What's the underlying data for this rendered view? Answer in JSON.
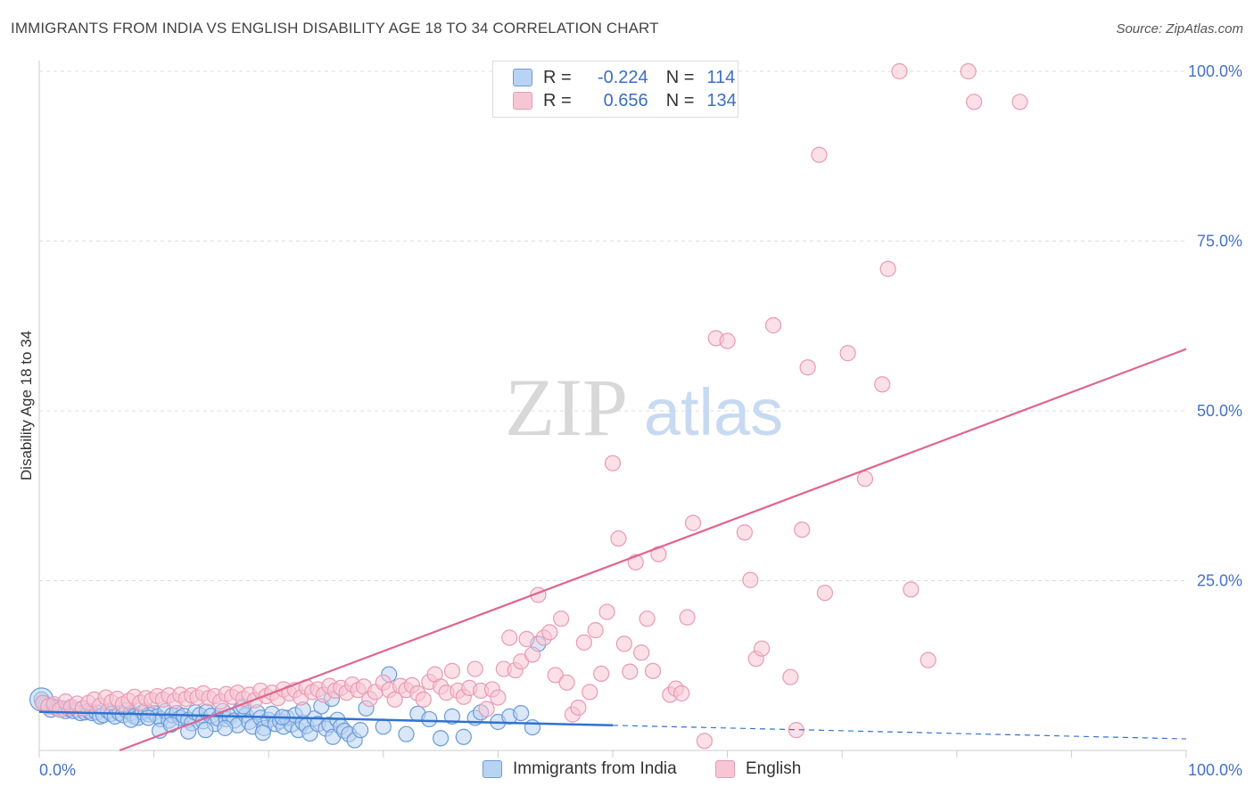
{
  "title": "IMMIGRANTS FROM INDIA VS ENGLISH DISABILITY AGE 18 TO 34 CORRELATION CHART",
  "source": "Source: ZipAtlas.com",
  "watermark": {
    "zip": "ZIP",
    "atlas": "atlas"
  },
  "legend": {
    "r_label": "R =",
    "n_label": "N =",
    "rows": [
      {
        "r": "-0.224",
        "n": "114",
        "color": "#6b9bd8",
        "fill": "#b9d3f3"
      },
      {
        "r": "0.656",
        "n": "134",
        "color": "#e99ab3",
        "fill": "#f7c6d5"
      }
    ]
  },
  "bottom_legend": [
    {
      "label": "Immigrants from India",
      "color": "#6b9bd8",
      "fill": "#b9d3f3"
    },
    {
      "label": "English",
      "color": "#e99ab3",
      "fill": "#f7c6d5"
    }
  ],
  "chart_data": {
    "type": "scatter",
    "title": "IMMIGRANTS FROM INDIA VS ENGLISH DISABILITY AGE 18 TO 34 CORRELATION CHART",
    "xlabel": "",
    "ylabel": "Disability Age 18 to 34",
    "xlim": [
      0,
      100
    ],
    "ylim": [
      0,
      100
    ],
    "x_tick_labels": [
      "0.0%",
      "100.0%"
    ],
    "y_ticks": [
      25,
      50,
      75,
      100
    ],
    "y_tick_labels": [
      "25.0%",
      "50.0%",
      "75.0%",
      "100.0%"
    ],
    "grid": true,
    "series": [
      {
        "name": "Immigrants from India",
        "color": "#6b9bd8",
        "fill": "#b9d3f3",
        "R": -0.224,
        "N": 114,
        "trend": {
          "x0": 0,
          "y0": 5.7,
          "x1": 50,
          "y1": 3.7,
          "x_end": 100,
          "y_end": 1.7
        },
        "points": [
          [
            0.2,
            7.5
          ],
          [
            0.4,
            7.0
          ],
          [
            0.6,
            6.8
          ],
          [
            0.8,
            6.5
          ],
          [
            1.0,
            6.0
          ],
          [
            1.2,
            6.5
          ],
          [
            1.5,
            6.3
          ],
          [
            1.8,
            6.0
          ],
          [
            2.0,
            6.2
          ],
          [
            2.3,
            5.8
          ],
          [
            2.6,
            6.1
          ],
          [
            3.0,
            5.8
          ],
          [
            3.3,
            6.0
          ],
          [
            3.6,
            5.5
          ],
          [
            4.0,
            5.6
          ],
          [
            4.3,
            5.8
          ],
          [
            4.6,
            5.5
          ],
          [
            5.0,
            5.6
          ],
          [
            5.3,
            5.0
          ],
          [
            5.6,
            5.2
          ],
          [
            6.0,
            5.8
          ],
          [
            6.3,
            5.4
          ],
          [
            6.6,
            5.0
          ],
          [
            7.0,
            5.5
          ],
          [
            7.3,
            5.2
          ],
          [
            7.6,
            5.9
          ],
          [
            8.0,
            5.5
          ],
          [
            8.3,
            5.0
          ],
          [
            8.6,
            4.8
          ],
          [
            9.0,
            5.6
          ],
          [
            9.3,
            5.9
          ],
          [
            9.6,
            5.3
          ],
          [
            10.0,
            5.5
          ],
          [
            10.3,
            5.0
          ],
          [
            10.6,
            4.6
          ],
          [
            11.0,
            5.8
          ],
          [
            11.3,
            4.4
          ],
          [
            11.6,
            5.2
          ],
          [
            12.0,
            5.5
          ],
          [
            12.3,
            4.8
          ],
          [
            12.6,
            5.1
          ],
          [
            13.0,
            4.5
          ],
          [
            13.3,
            4.0
          ],
          [
            13.6,
            5.6
          ],
          [
            14.0,
            5.2
          ],
          [
            14.3,
            4.3
          ],
          [
            14.6,
            5.7
          ],
          [
            15.0,
            5.1
          ],
          [
            15.3,
            3.9
          ],
          [
            15.6,
            4.7
          ],
          [
            16.0,
            5.8
          ],
          [
            16.3,
            4.6
          ],
          [
            16.6,
            5.0
          ],
          [
            17.0,
            4.4
          ],
          [
            17.3,
            3.7
          ],
          [
            17.6,
            6.2
          ],
          [
            18.0,
            5.2
          ],
          [
            18.3,
            4.2
          ],
          [
            18.6,
            3.5
          ],
          [
            19.0,
            5.6
          ],
          [
            19.3,
            4.8
          ],
          [
            19.6,
            3.3
          ],
          [
            20.0,
            4.5
          ],
          [
            20.3,
            5.4
          ],
          [
            20.6,
            3.9
          ],
          [
            21.0,
            4.3
          ],
          [
            21.3,
            3.5
          ],
          [
            21.6,
            4.8
          ],
          [
            22.0,
            3.8
          ],
          [
            22.3,
            5.2
          ],
          [
            22.6,
            3.0
          ],
          [
            23.0,
            4.1
          ],
          [
            23.3,
            3.6
          ],
          [
            23.6,
            2.5
          ],
          [
            24.0,
            4.7
          ],
          [
            24.3,
            3.9
          ],
          [
            24.6,
            6.5
          ],
          [
            25.0,
            3.2
          ],
          [
            25.3,
            3.8
          ],
          [
            25.6,
            2.0
          ],
          [
            26.0,
            4.5
          ],
          [
            26.3,
            3.5
          ],
          [
            26.6,
            2.9
          ],
          [
            27.0,
            2.4
          ],
          [
            27.5,
            1.5
          ],
          [
            28.0,
            3.0
          ],
          [
            8.0,
            4.5
          ],
          [
            9.5,
            4.8
          ],
          [
            10.5,
            2.9
          ],
          [
            11.5,
            3.8
          ],
          [
            13.0,
            2.8
          ],
          [
            14.5,
            3.0
          ],
          [
            16.2,
            3.3
          ],
          [
            17.8,
            6.5
          ],
          [
            19.5,
            2.6
          ],
          [
            21.2,
            4.9
          ],
          [
            23.0,
            6.0
          ],
          [
            25.5,
            7.6
          ],
          [
            28.5,
            6.2
          ],
          [
            30.0,
            3.5
          ],
          [
            30.5,
            11.2
          ],
          [
            32.0,
            2.4
          ],
          [
            33.0,
            5.4
          ],
          [
            34.0,
            4.6
          ],
          [
            35.0,
            1.8
          ],
          [
            36.0,
            5.0
          ],
          [
            37.0,
            2.0
          ],
          [
            38.0,
            4.8
          ],
          [
            38.5,
            5.6
          ],
          [
            40.0,
            4.2
          ],
          [
            41.0,
            5.0
          ],
          [
            42.0,
            5.5
          ],
          [
            43.0,
            3.4
          ],
          [
            43.5,
            15.7
          ]
        ]
      },
      {
        "name": "English",
        "color": "#e99ab3",
        "fill": "#f7c6d5",
        "R": 0.656,
        "N": 134,
        "trend": {
          "x0": 7.0,
          "y0": 0,
          "x1": 100,
          "y1": 59.1
        },
        "points": [
          [
            0.3,
            7.0
          ],
          [
            0.8,
            6.5
          ],
          [
            1.3,
            6.8
          ],
          [
            1.8,
            6.0
          ],
          [
            2.3,
            7.2
          ],
          [
            2.8,
            6.4
          ],
          [
            3.3,
            6.9
          ],
          [
            3.8,
            6.2
          ],
          [
            4.3,
            7.0
          ],
          [
            4.8,
            7.5
          ],
          [
            5.3,
            6.6
          ],
          [
            5.8,
            7.8
          ],
          [
            6.3,
            7.1
          ],
          [
            6.8,
            7.6
          ],
          [
            7.3,
            6.8
          ],
          [
            7.8,
            7.3
          ],
          [
            8.3,
            7.9
          ],
          [
            8.8,
            7.0
          ],
          [
            9.3,
            7.7
          ],
          [
            9.8,
            7.4
          ],
          [
            10.3,
            8.0
          ],
          [
            10.8,
            7.5
          ],
          [
            11.3,
            8.1
          ],
          [
            11.8,
            7.3
          ],
          [
            12.3,
            8.2
          ],
          [
            12.8,
            7.6
          ],
          [
            13.3,
            8.1
          ],
          [
            13.8,
            7.8
          ],
          [
            14.3,
            8.4
          ],
          [
            14.8,
            7.7
          ],
          [
            15.3,
            8.0
          ],
          [
            15.8,
            7.2
          ],
          [
            16.3,
            8.3
          ],
          [
            16.8,
            7.9
          ],
          [
            17.3,
            8.5
          ],
          [
            17.8,
            7.6
          ],
          [
            18.3,
            8.2
          ],
          [
            18.8,
            7.4
          ],
          [
            19.3,
            8.8
          ],
          [
            19.8,
            8.0
          ],
          [
            20.3,
            8.5
          ],
          [
            20.8,
            7.7
          ],
          [
            21.3,
            9.0
          ],
          [
            21.8,
            8.4
          ],
          [
            22.3,
            8.9
          ],
          [
            22.8,
            7.8
          ],
          [
            23.3,
            9.3
          ],
          [
            23.8,
            8.6
          ],
          [
            24.3,
            9.0
          ],
          [
            24.8,
            8.2
          ],
          [
            25.3,
            9.5
          ],
          [
            25.8,
            8.8
          ],
          [
            26.3,
            9.2
          ],
          [
            26.8,
            8.5
          ],
          [
            27.3,
            9.7
          ],
          [
            27.8,
            8.9
          ],
          [
            28.3,
            9.4
          ],
          [
            28.8,
            7.6
          ],
          [
            29.3,
            8.6
          ],
          [
            30.0,
            10.0
          ],
          [
            30.5,
            8.9
          ],
          [
            31.0,
            7.5
          ],
          [
            31.5,
            9.5
          ],
          [
            32.0,
            8.9
          ],
          [
            32.5,
            9.6
          ],
          [
            33.0,
            8.4
          ],
          [
            33.5,
            7.5
          ],
          [
            34.0,
            10.1
          ],
          [
            34.5,
            11.2
          ],
          [
            35.0,
            9.4
          ],
          [
            35.5,
            8.5
          ],
          [
            36.0,
            11.7
          ],
          [
            36.5,
            8.8
          ],
          [
            37.0,
            7.9
          ],
          [
            37.5,
            9.2
          ],
          [
            38.0,
            12.0
          ],
          [
            38.5,
            8.8
          ],
          [
            39.0,
            6.1
          ],
          [
            39.5,
            9.0
          ],
          [
            40.0,
            7.8
          ],
          [
            40.5,
            12.0
          ],
          [
            41.0,
            16.6
          ],
          [
            41.5,
            11.8
          ],
          [
            42.0,
            13.1
          ],
          [
            42.5,
            16.4
          ],
          [
            43.0,
            14.1
          ],
          [
            43.5,
            22.9
          ],
          [
            44.0,
            16.6
          ],
          [
            44.5,
            17.4
          ],
          [
            45.0,
            11.1
          ],
          [
            45.5,
            19.4
          ],
          [
            46.0,
            10.0
          ],
          [
            46.5,
            5.3
          ],
          [
            47.0,
            6.3
          ],
          [
            47.5,
            15.9
          ],
          [
            48.0,
            8.6
          ],
          [
            48.5,
            17.7
          ],
          [
            49.0,
            11.3
          ],
          [
            49.5,
            20.4
          ],
          [
            50.0,
            42.3
          ],
          [
            50.5,
            31.2
          ],
          [
            51.0,
            15.7
          ],
          [
            51.5,
            11.6
          ],
          [
            52.0,
            27.7
          ],
          [
            52.5,
            14.4
          ],
          [
            53.0,
            19.4
          ],
          [
            53.5,
            11.7
          ],
          [
            54.0,
            28.9
          ],
          [
            55.0,
            8.2
          ],
          [
            55.5,
            9.1
          ],
          [
            56.0,
            8.4
          ],
          [
            56.5,
            19.6
          ],
          [
            57.0,
            33.5
          ],
          [
            58.0,
            1.4
          ],
          [
            59.0,
            60.7
          ],
          [
            60.0,
            60.3
          ],
          [
            61.5,
            32.1
          ],
          [
            62.0,
            25.1
          ],
          [
            62.5,
            13.5
          ],
          [
            63.0,
            15.0
          ],
          [
            64.0,
            62.6
          ],
          [
            65.5,
            10.8
          ],
          [
            66.0,
            3.0
          ],
          [
            66.5,
            32.5
          ],
          [
            67.0,
            56.4
          ],
          [
            68.0,
            87.7
          ],
          [
            68.5,
            23.2
          ],
          [
            70.5,
            58.5
          ],
          [
            72.0,
            40.0
          ],
          [
            73.5,
            53.9
          ],
          [
            74.0,
            70.9
          ],
          [
            75.0,
            100.0
          ],
          [
            76.0,
            23.7
          ],
          [
            77.5,
            13.3
          ],
          [
            81.0,
            100.0
          ],
          [
            81.5,
            95.5
          ],
          [
            85.5,
            95.5
          ]
        ]
      }
    ]
  }
}
